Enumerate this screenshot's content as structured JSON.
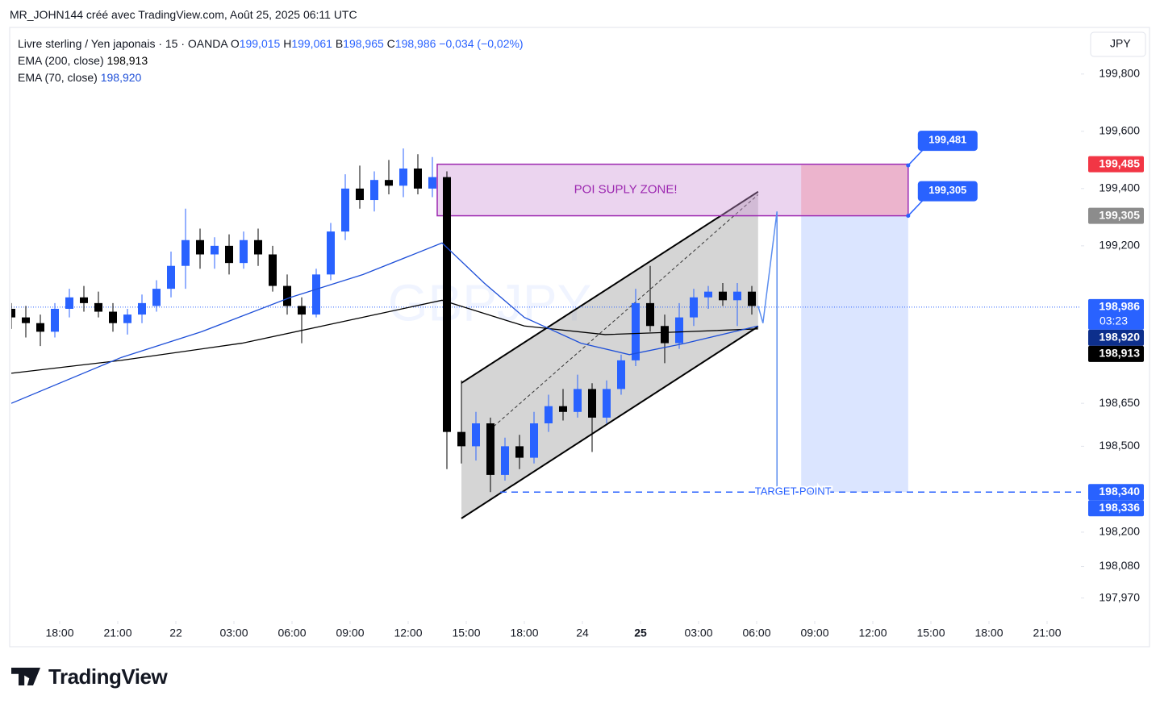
{
  "header": {
    "author": "MR_JOHN144 créé avec TradingView.com, Août 25, 2025 06:11 UTC",
    "currency": "JPY",
    "logo": "TradingView"
  },
  "chart_data": {
    "type": "candlestick",
    "title": "Livre sterling / Yen japonais · 15 · OANDA",
    "ohlc": [
      {
        "key": "O",
        "value": 199.015,
        "label": "199,015"
      },
      {
        "key": "H",
        "value": 199.061,
        "label": "199,061"
      },
      {
        "key": "B",
        "value": 198.965,
        "label": "198,965"
      },
      {
        "key": "C",
        "value": 198.986,
        "label": "198,986"
      }
    ],
    "change": "−0,034 (−0,02%)",
    "watermark": "GBPJPY",
    "up_color": "#2962ff",
    "down_color": "#000000",
    "x": [
      -10,
      -7,
      -4,
      -1,
      2,
      5,
      8,
      11,
      14,
      17,
      20,
      23,
      26,
      29,
      32,
      35,
      38,
      41,
      44,
      47,
      50,
      53,
      56,
      59,
      62,
      65,
      68,
      71,
      74,
      77,
      80,
      83,
      86,
      89,
      92,
      95,
      98,
      101,
      104,
      107,
      110,
      113,
      116,
      119,
      122,
      125,
      128,
      131,
      134,
      137,
      140,
      143
    ],
    "open": [
      198.98,
      198.95,
      198.93,
      198.9,
      198.98,
      199.02,
      199.0,
      198.97,
      198.93,
      198.96,
      198.99,
      199.05,
      199.13,
      199.22,
      199.17,
      199.2,
      199.14,
      199.22,
      199.17,
      199.06,
      198.99,
      198.96,
      199.1,
      199.25,
      199.4,
      199.36,
      199.43,
      199.41,
      199.47,
      199.4,
      199.44,
      198.55,
      198.5,
      198.58,
      198.4,
      198.5,
      198.46,
      198.58,
      198.64,
      198.62,
      198.7,
      198.6,
      198.7,
      198.8,
      199.0,
      198.92,
      198.86,
      198.95,
      199.02,
      199.04,
      199.01,
      199.04
    ],
    "high": [
      199.0,
      198.99,
      198.96,
      199.0,
      199.05,
      199.06,
      199.04,
      199.0,
      198.98,
      199.03,
      199.08,
      199.18,
      199.33,
      199.26,
      199.23,
      199.24,
      199.25,
      199.26,
      199.2,
      199.1,
      199.02,
      199.12,
      199.28,
      199.45,
      199.48,
      199.46,
      199.5,
      199.54,
      199.52,
      199.51,
      199.46,
      198.73,
      198.62,
      198.6,
      198.53,
      198.54,
      198.62,
      198.68,
      198.7,
      198.75,
      198.72,
      198.73,
      198.82,
      199.05,
      199.13,
      198.96,
      199.0,
      199.05,
      199.06,
      199.07,
      199.07,
      199.06
    ],
    "low": [
      198.91,
      198.88,
      198.85,
      198.88,
      198.95,
      198.97,
      198.95,
      198.9,
      198.89,
      198.93,
      198.97,
      199.02,
      199.05,
      199.12,
      199.12,
      199.1,
      199.12,
      199.13,
      199.04,
      198.96,
      198.86,
      198.95,
      199.08,
      199.22,
      199.33,
      199.32,
      199.38,
      199.37,
      199.38,
      199.37,
      198.42,
      198.44,
      198.45,
      198.34,
      198.38,
      198.42,
      198.44,
      198.55,
      198.59,
      198.6,
      198.48,
      198.58,
      198.68,
      198.78,
      198.9,
      198.79,
      198.84,
      198.92,
      198.98,
      198.99,
      198.92,
      198.96
    ],
    "close": [
      198.95,
      198.93,
      198.9,
      198.98,
      199.02,
      199.0,
      198.97,
      198.93,
      198.96,
      199.0,
      199.05,
      199.13,
      199.22,
      199.17,
      199.2,
      199.14,
      199.22,
      199.17,
      199.06,
      198.99,
      198.96,
      199.1,
      199.25,
      199.4,
      199.36,
      199.43,
      199.41,
      199.47,
      199.4,
      199.44,
      198.55,
      198.5,
      198.58,
      198.4,
      198.5,
      198.46,
      198.58,
      198.64,
      198.62,
      198.7,
      198.6,
      198.7,
      198.8,
      199.0,
      198.92,
      198.86,
      198.95,
      199.02,
      199.04,
      199.01,
      199.04,
      198.99
    ],
    "series": [
      {
        "name": "EMA (200, close)",
        "value_label": "198,913",
        "color": "#000000",
        "x": [
          -10,
          12.7,
          37.7,
          54.3,
          79,
          96,
          112.7,
          129.3,
          144.3
        ],
        "values": [
          198.755,
          198.8,
          198.86,
          198.92,
          199.01,
          198.92,
          198.89,
          198.9,
          198.91
        ]
      },
      {
        "name": "EMA (70, close)",
        "value_label": "198,920",
        "color": "#1e4fd8",
        "x": [
          -10,
          12.7,
          29.3,
          47.7,
          62.7,
          79,
          87.7,
          96,
          107.7,
          117.7,
          129.3,
          144.3
        ],
        "values": [
          198.65,
          198.81,
          198.9,
          199.02,
          199.1,
          199.21,
          199.07,
          198.95,
          198.86,
          198.82,
          198.86,
          198.92
        ]
      }
    ],
    "xlim": [
      -10,
      211
    ],
    "xticks": [
      {
        "value": 0,
        "label": "18:00"
      },
      {
        "value": 12,
        "label": "21:00"
      },
      {
        "value": 24,
        "label": "22"
      },
      {
        "value": 36,
        "label": "03:00"
      },
      {
        "value": 48,
        "label": "06:00"
      },
      {
        "value": 60,
        "label": "09:00"
      },
      {
        "value": 72,
        "label": "12:00"
      },
      {
        "value": 84,
        "label": "15:00"
      },
      {
        "value": 96,
        "label": "18:00"
      },
      {
        "value": 108,
        "label": "24"
      },
      {
        "value": 120,
        "label": "25",
        "bold": true
      },
      {
        "value": 132,
        "label": "03:00"
      },
      {
        "value": 144,
        "label": "06:00"
      },
      {
        "value": 156,
        "label": "09:00"
      },
      {
        "value": 168,
        "label": "12:00"
      },
      {
        "value": 180,
        "label": "15:00"
      },
      {
        "value": 192,
        "label": "18:00"
      },
      {
        "value": 204,
        "label": "21:00"
      }
    ],
    "ylim": [
      197.89,
      199.96
    ],
    "yticks": [
      {
        "value": 199.8,
        "label": "199,800"
      },
      {
        "value": 199.6,
        "label": "199,600"
      },
      {
        "value": 199.4,
        "label": "199,400"
      },
      {
        "value": 199.2,
        "label": "199,200"
      },
      {
        "value": 198.65,
        "label": "198,650"
      },
      {
        "value": 198.5,
        "label": "198,500"
      },
      {
        "value": 198.2,
        "label": "198,200"
      },
      {
        "value": 198.08,
        "label": "198,080"
      },
      {
        "value": 197.97,
        "label": "197,970"
      }
    ],
    "last_price": 198.986,
    "zone": {
      "label": "POI SUPLY ZONE!",
      "x": [
        78,
        175.3
      ],
      "y": [
        199.305,
        199.485
      ],
      "stop_x": 153.2,
      "color": "#9c27b0"
    },
    "target": {
      "label": "TARGET POINT",
      "value": 198.34,
      "x": 91
    },
    "channel": {
      "x": [
        83,
        144.3
      ],
      "lower": [
        198.248,
        198.918
      ],
      "upper": [
        198.721,
        199.389
      ]
    },
    "projection": {
      "x": [
        144.3,
        145.3,
        148.2,
        148.2
      ],
      "values": [
        198.99,
        198.93,
        199.32,
        198.34
      ]
    },
    "callouts": [
      {
        "value": 199.481,
        "label": "199,481"
      },
      {
        "value": 199.305,
        "label": "199,305"
      }
    ],
    "price_labels": [
      {
        "value": 199.485,
        "label": "199,485",
        "color": "#f23645"
      },
      {
        "value": 199.305,
        "label": "199,305",
        "color": "#8c8c8c"
      },
      {
        "value": 198.986,
        "label": "198,986",
        "sub": "03:23",
        "color": "#2962ff"
      },
      {
        "value": 198.92,
        "label": "198,920",
        "color": "#0d2f8c"
      },
      {
        "value": 198.913,
        "label": "198,913",
        "color": "#000000"
      },
      {
        "value": 198.34,
        "label": "198,340",
        "color": "#2962ff"
      },
      {
        "value": 198.336,
        "label": "198,336",
        "color": "#2962ff"
      }
    ]
  }
}
